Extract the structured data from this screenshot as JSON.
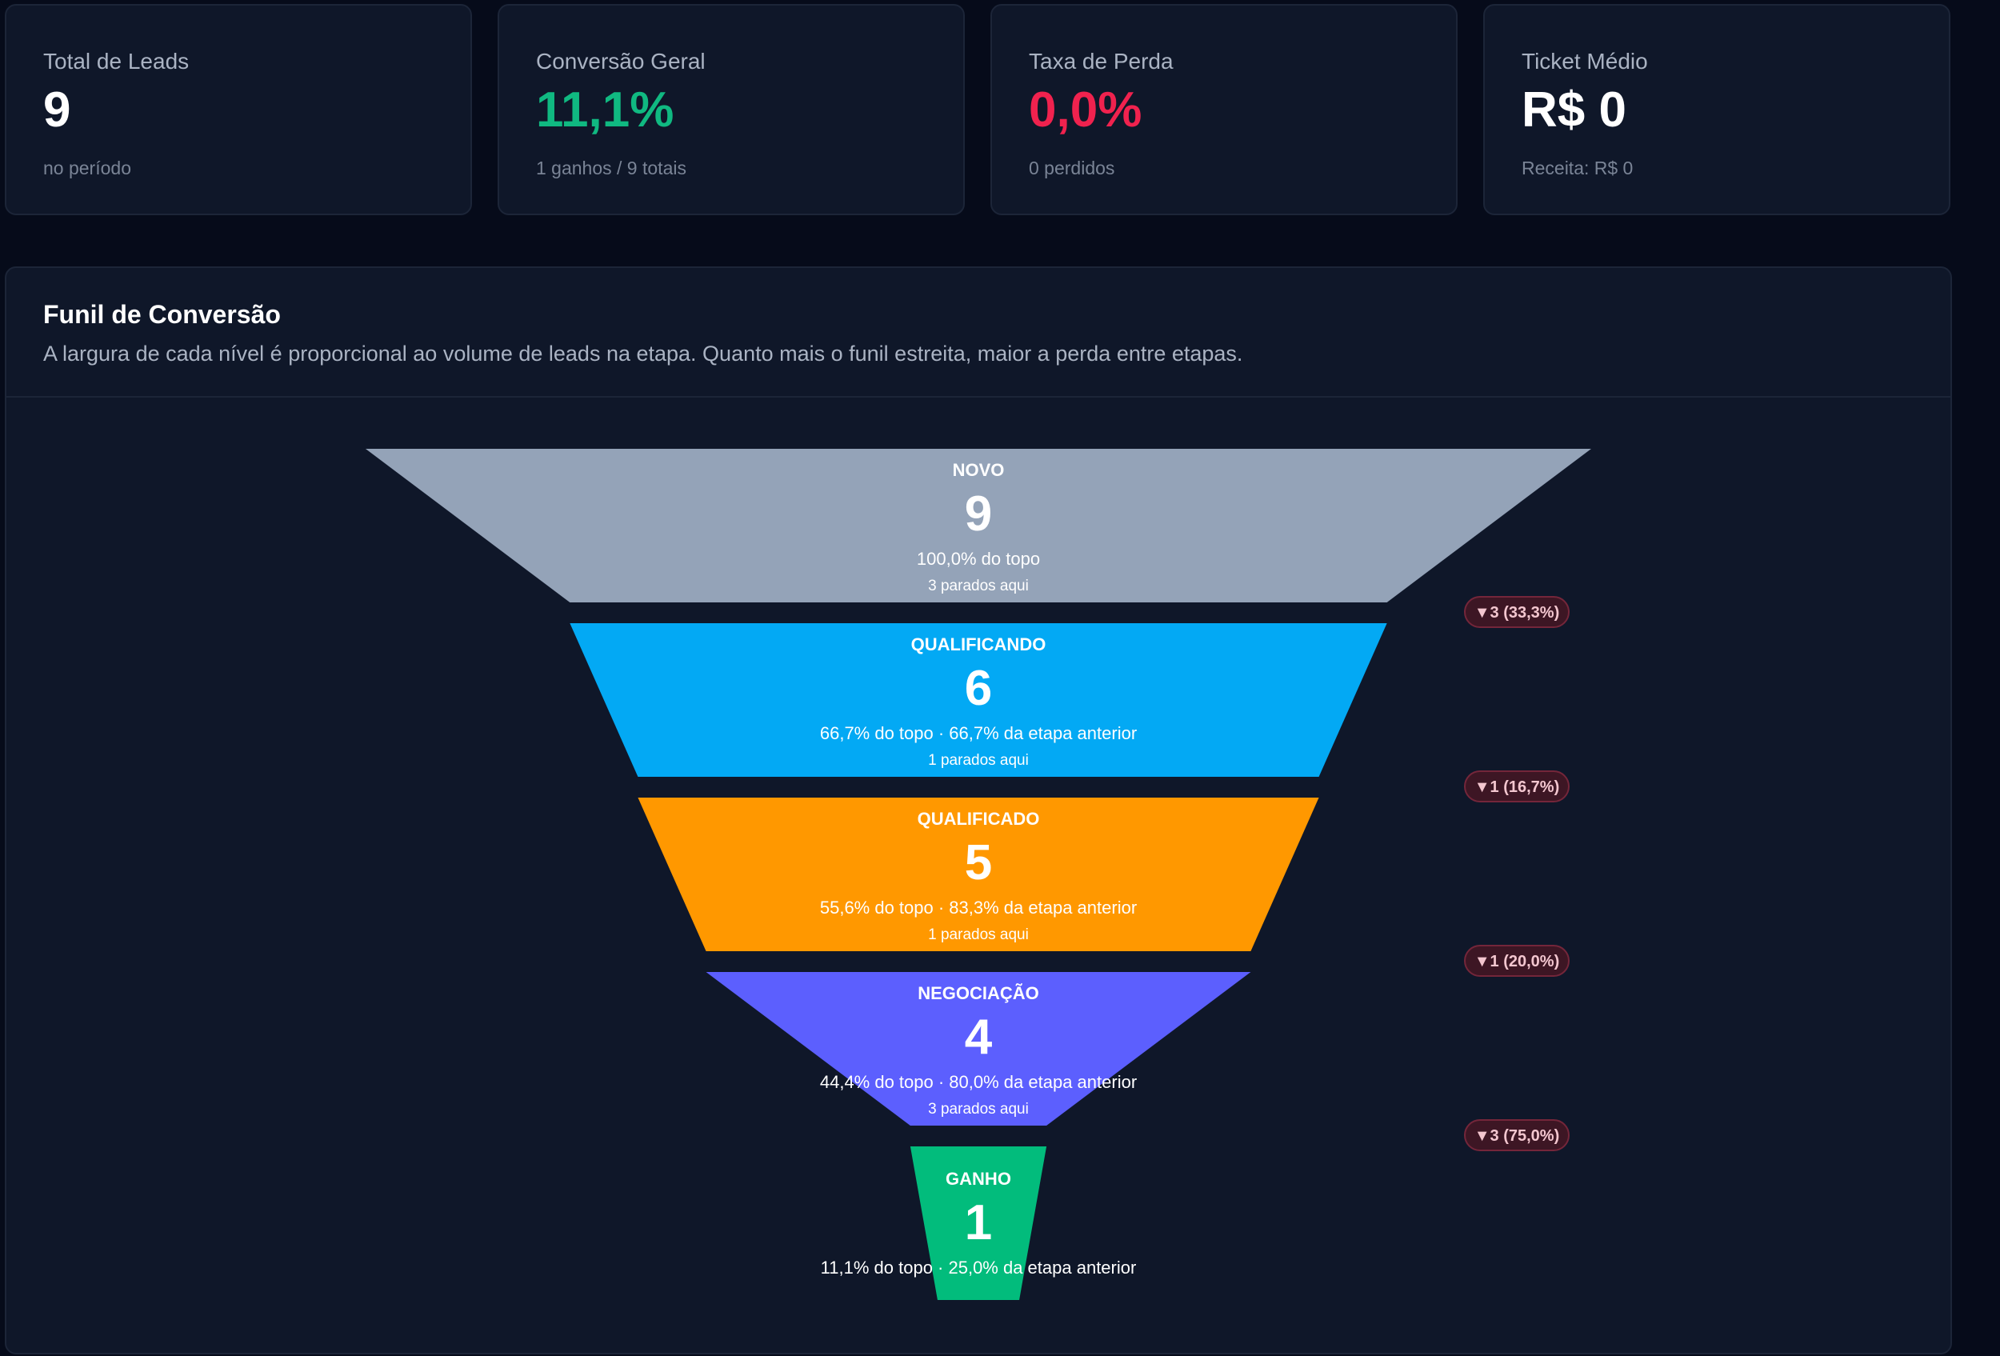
{
  "kpis": [
    {
      "label": "Total de Leads",
      "value": "9",
      "sub": "no período",
      "color": "#ffffff"
    },
    {
      "label": "Conversão Geral",
      "value": "11,1%",
      "sub": "1 ganhos / 9 totais",
      "color": "#10b981"
    },
    {
      "label": "Taxa de Perda",
      "value": "0,0%",
      "sub": "0 perdidos",
      "color": "#f0224e"
    },
    {
      "label": "Ticket Médio",
      "value": "R$ 0",
      "sub": "Receita: R$ 0",
      "color": "#ffffff"
    }
  ],
  "funnel": {
    "title": "Funil de Conversão",
    "description": "A largura de cada nível é proporcional ao volume de leads na etapa. Quanto mais o funil estreita, maior a perda entre etapas."
  },
  "chart_data": {
    "type": "funnel",
    "stages": [
      {
        "name": "NOVO",
        "count": 9,
        "pct_label": "100,0% do topo",
        "stuck_label": "3 parados aqui",
        "color": "#94a3b8"
      },
      {
        "name": "QUALIFICANDO",
        "count": 6,
        "pct_label": "66,7% do topo · 66,7% da etapa anterior",
        "stuck_label": "1 parados aqui",
        "color": "#03a9f4"
      },
      {
        "name": "QUALIFICADO",
        "count": 5,
        "pct_label": "55,6% do topo · 83,3% da etapa anterior",
        "stuck_label": "1 parados aqui",
        "color": "#ff9800"
      },
      {
        "name": "NEGOCIAÇÃO",
        "count": 4,
        "pct_label": "44,4% do topo · 80,0% da etapa anterior",
        "stuck_label": "3 parados aqui",
        "color": "#5c5ffe"
      },
      {
        "name": "GANHO",
        "count": 1,
        "pct_label": "11,1% do topo · 25,0% da etapa anterior",
        "stuck_label": "",
        "color": "#02bc7c"
      }
    ],
    "drops": [
      "▼3 (33,3%)",
      "▼1 (16,7%)",
      "▼1 (20,0%)",
      "▼3 (75,0%)"
    ]
  }
}
